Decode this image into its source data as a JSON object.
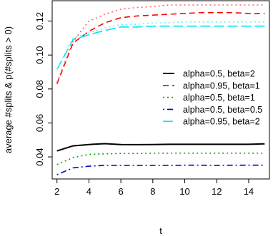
{
  "chart_data": {
    "type": "line",
    "title": "",
    "xlabel": "t",
    "ylabel": "average #splits & p(#splits > 0)",
    "xlim": [
      1.7,
      15.3
    ],
    "ylim": [
      0.027,
      0.132
    ],
    "xticks": [
      2,
      4,
      6,
      8,
      10,
      12,
      14
    ],
    "yticks": [
      0.04,
      0.06,
      0.08,
      0.1,
      0.12
    ],
    "ytick_labels": [
      "0.04",
      "0.06",
      "0.08",
      "0.10",
      "0.12"
    ],
    "grid": false,
    "legend_position": "right",
    "legend_entries": [
      "alpha=0.5, beta=2",
      "alpha=0.95, beta=1",
      "alpha=0.5, beta=1",
      "alpha=0.5, beta=0.5",
      "alpha=0.95, beta=2"
    ],
    "x": [
      2,
      3,
      4,
      5,
      6,
      7,
      8,
      9,
      10,
      11,
      12,
      13,
      14,
      15
    ],
    "series": [
      {
        "name": "alpha=0.5, beta=2",
        "color": "#000000",
        "dash": "solid",
        "values": [
          0.0435,
          0.0465,
          0.0473,
          0.0478,
          0.0473,
          0.0472,
          0.0473,
          0.0474,
          0.0474,
          0.0474,
          0.0474,
          0.0474,
          0.0474,
          0.0477
        ]
      },
      {
        "name": "alpha=0.95, beta=1",
        "color": "#ff0000",
        "dash": "dashed",
        "values": [
          0.083,
          0.107,
          0.114,
          0.119,
          0.122,
          0.123,
          0.1235,
          0.124,
          0.1245,
          0.125,
          0.125,
          0.125,
          0.1245,
          0.1245
        ]
      },
      {
        "name": "alpha=0.5, beta=1",
        "color": "#00aa00",
        "dash": "dotted",
        "values": [
          0.0355,
          0.0395,
          0.0415,
          0.0418,
          0.042,
          0.042,
          0.0422,
          0.0422,
          0.0422,
          0.0422,
          0.0422,
          0.0422,
          0.0422,
          0.0422
        ]
      },
      {
        "name": "alpha=0.5, beta=0.5",
        "color": "#0000cc",
        "dash": "dotdash",
        "values": [
          0.0295,
          0.0335,
          0.0345,
          0.035,
          0.035,
          0.035,
          0.035,
          0.035,
          0.0351,
          0.0351,
          0.035,
          0.0351,
          0.0351,
          0.0351
        ]
      },
      {
        "name": "alpha=0.95, beta=2",
        "color": "#00e5ee",
        "dash": "longdash",
        "values": [
          0.0915,
          0.109,
          0.112,
          0.1145,
          0.1165,
          0.1165,
          0.117,
          0.117,
          0.117,
          0.117,
          0.117,
          0.117,
          0.117,
          0.117
        ]
      },
      {
        "name": "",
        "color": "#ff6060",
        "dash": "dotted",
        "values": [
          0.084,
          0.108,
          0.12,
          0.124,
          0.127,
          0.128,
          0.1285,
          0.1295,
          0.1295,
          0.1295,
          0.1295,
          0.1295,
          0.1295,
          0.1295
        ]
      },
      {
        "name": "",
        "color": "#66eeff",
        "dash": "dotted",
        "values": [
          0.0915,
          0.11,
          0.113,
          0.116,
          0.118,
          0.118,
          0.119,
          0.119,
          0.1195,
          0.1195,
          0.1195,
          0.1195,
          0.1195,
          0.1195
        ]
      }
    ]
  }
}
